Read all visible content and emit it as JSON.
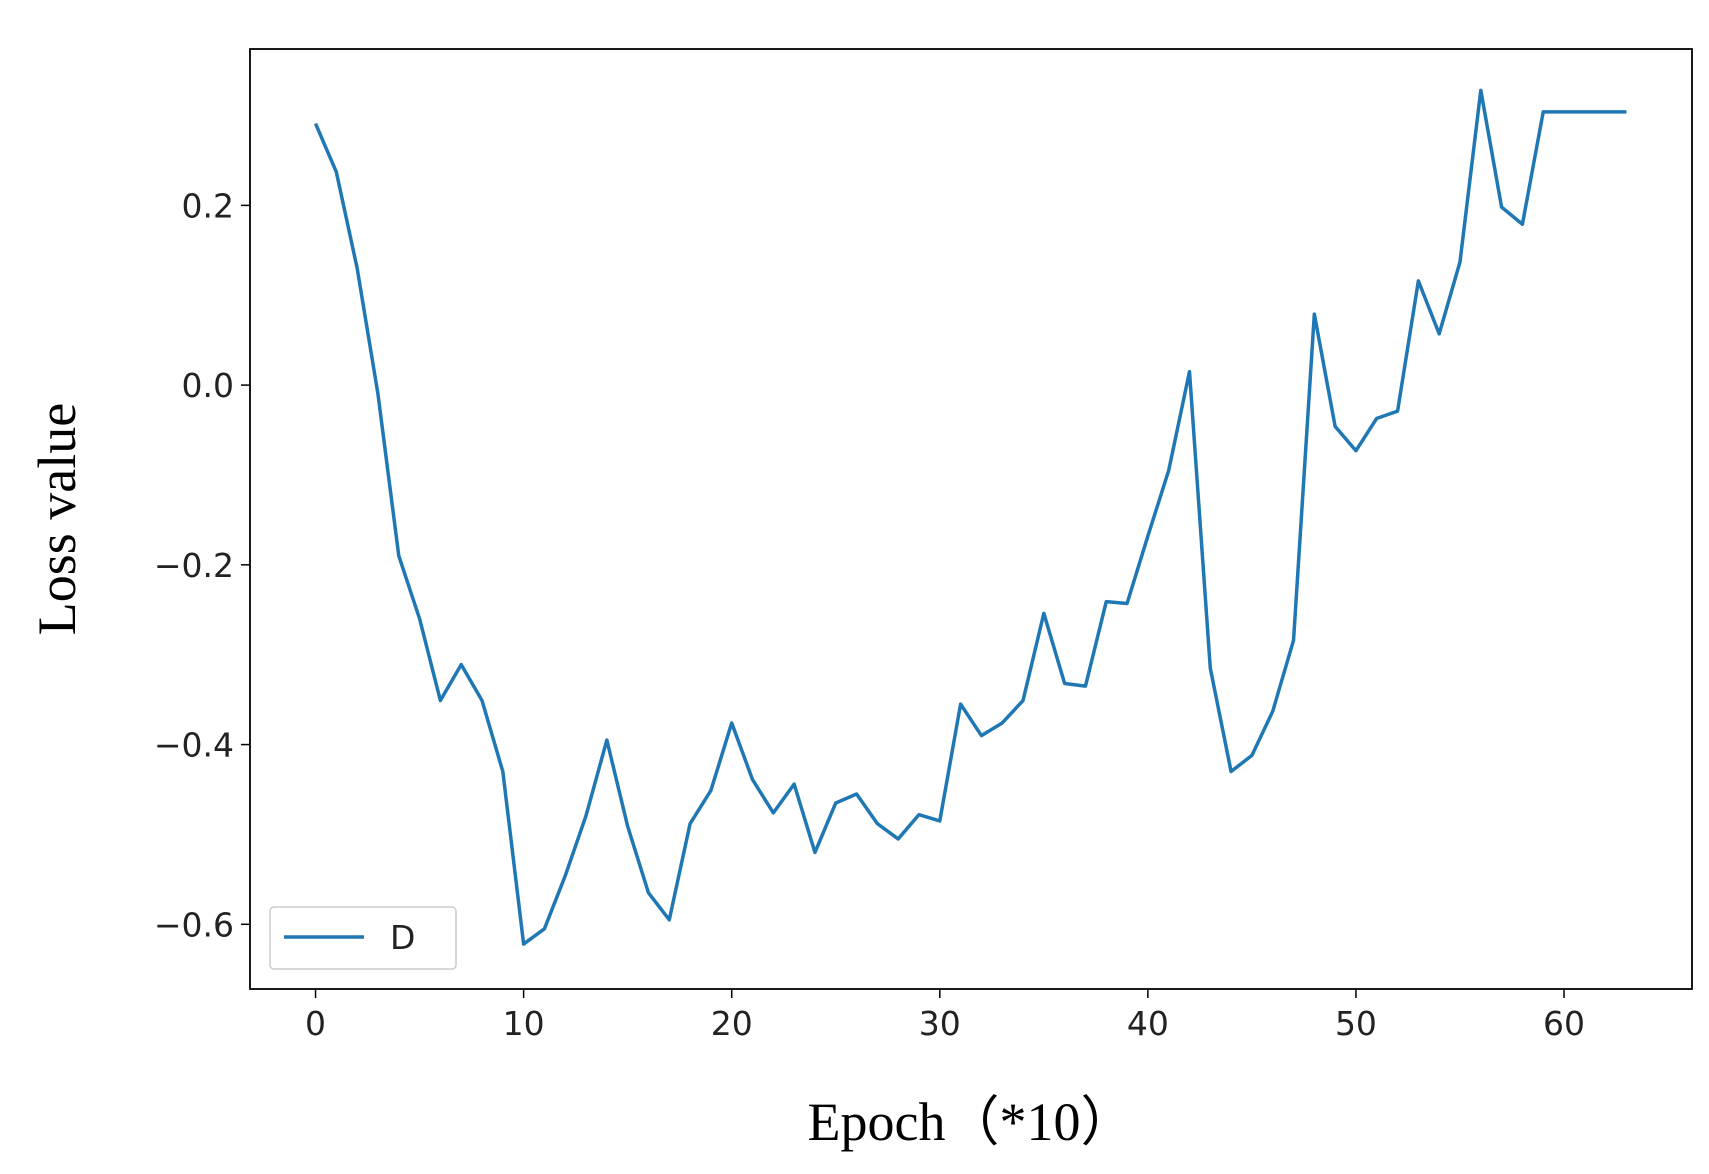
{
  "chart_data": {
    "type": "line",
    "xlabel": "Epoch（*10）",
    "ylabel": "Loss value",
    "x": [
      0,
      1,
      2,
      3,
      4,
      5,
      6,
      7,
      8,
      9,
      10,
      11,
      12,
      13,
      14,
      15,
      16,
      17,
      18,
      19,
      20,
      21,
      22,
      23,
      24,
      25,
      26,
      27,
      28,
      29,
      30,
      31,
      32,
      33,
      34,
      35,
      36,
      37,
      38,
      39,
      40,
      41,
      42,
      43,
      44,
      45,
      46,
      47,
      48,
      49,
      50,
      51,
      52,
      53,
      54,
      55,
      56,
      57,
      58,
      59,
      60,
      61,
      62,
      63
    ],
    "series": [
      {
        "name": "D",
        "color": "#1f77b4",
        "values": [
          0.291,
          0.237,
          0.13,
          -0.01,
          -0.19,
          -0.26,
          -0.351,
          -0.311,
          -0.351,
          -0.43,
          -0.622,
          -0.605,
          -0.546,
          -0.479,
          -0.395,
          -0.491,
          -0.565,
          -0.595,
          -0.488,
          -0.451,
          -0.376,
          -0.439,
          -0.476,
          -0.444,
          -0.52,
          -0.465,
          -0.455,
          -0.488,
          -0.505,
          -0.478,
          -0.485,
          -0.355,
          -0.39,
          -0.376,
          -0.351,
          -0.254,
          -0.332,
          -0.335,
          -0.241,
          -0.243,
          -0.168,
          -0.095,
          0.015,
          -0.315,
          -0.43,
          -0.412,
          -0.363,
          -0.284,
          0.079,
          -0.046,
          -0.073,
          -0.037,
          -0.029,
          0.116,
          0.057,
          0.137,
          0.328,
          0.198,
          0.179,
          0.304,
          0.304,
          0.304,
          0.304,
          0.304
        ]
      }
    ],
    "xlim": [
      -3.15,
      66.15
    ],
    "ylim": [
      -0.672,
      0.374
    ],
    "xticks": [
      0,
      10,
      20,
      30,
      40,
      50,
      60
    ],
    "yticks": [
      {
        "value": -0.6,
        "label": "−0.6"
      },
      {
        "value": -0.4,
        "label": "−0.4"
      },
      {
        "value": -0.2,
        "label": "−0.2"
      },
      {
        "value": 0,
        "label": "0.0"
      },
      0.2
    ],
    "grid": false,
    "legend": "lower left"
  }
}
